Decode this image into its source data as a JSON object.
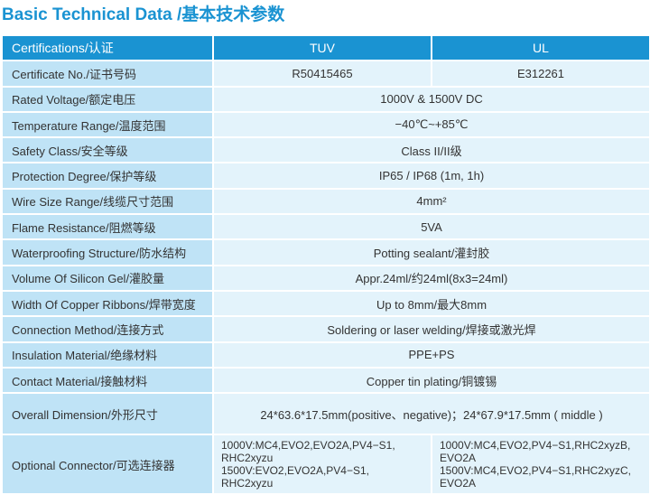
{
  "title": "Basic Technical Data /基本技术参数",
  "header": {
    "label": "Certifications/认证",
    "col1": "TUV",
    "col2": "UL"
  },
  "rows": [
    {
      "label": "Certificate No./证书号码",
      "v1": "R50415465",
      "v2": "E312261"
    },
    {
      "label": "Rated Voltage/额定电压",
      "value": "1000V  & 1500V DC"
    },
    {
      "label": "Temperature Range/温度范围",
      "value": "−40℃~+85℃"
    },
    {
      "label": "Safety Class/安全等级",
      "value": "Class II/II级"
    },
    {
      "label": "Protection Degree/保护等级",
      "value": "IP65 / IP68 (1m, 1h)"
    },
    {
      "label": "Wire Size Range/线缆尺寸范围",
      "value": "4mm²"
    },
    {
      "label": "Flame Resistance/阻燃等级",
      "value": "5VA"
    },
    {
      "label": "Waterproofing Structure/防水结构",
      "value": "Potting sealant/灌封胶"
    },
    {
      "label": "Volume Of Silicon Gel/灌胶量",
      "value": "Appr.24ml/约24ml(8x3=24ml)"
    },
    {
      "label": "Width Of Copper Ribbons/焊带宽度",
      "value": "Up to 8mm/最大8mm"
    },
    {
      "label": "Connection Method/连接方式",
      "value": "Soldering or laser welding/焊接或激光焊"
    },
    {
      "label": "Insulation Material/绝缘材料",
      "value": "PPE+PS"
    },
    {
      "label": "Contact Material/接触材料",
      "value": "Copper tin plating/铜镀锡"
    },
    {
      "label": "Overall Dimension/外形尺寸",
      "value": "24*63.6*17.5mm(positive、negative)；24*67.9*17.5mm ( middle )"
    },
    {
      "label": "Optional Connector/可选连接器",
      "v1": [
        "1000V:MC4,EVO2,EVO2A,PV4−S1,",
        "RHC2xyzu",
        "1500V:EVO2,EVO2A,PV4−S1,",
        "RHC2xyzu"
      ],
      "v2": [
        "1000V:MC4,EVO2,PV4−S1,RHC2xyzB,",
        "EVO2A",
        "1500V:MC4,EVO2,PV4−S1,RHC2xyzC,",
        "EVO2A"
      ]
    }
  ]
}
